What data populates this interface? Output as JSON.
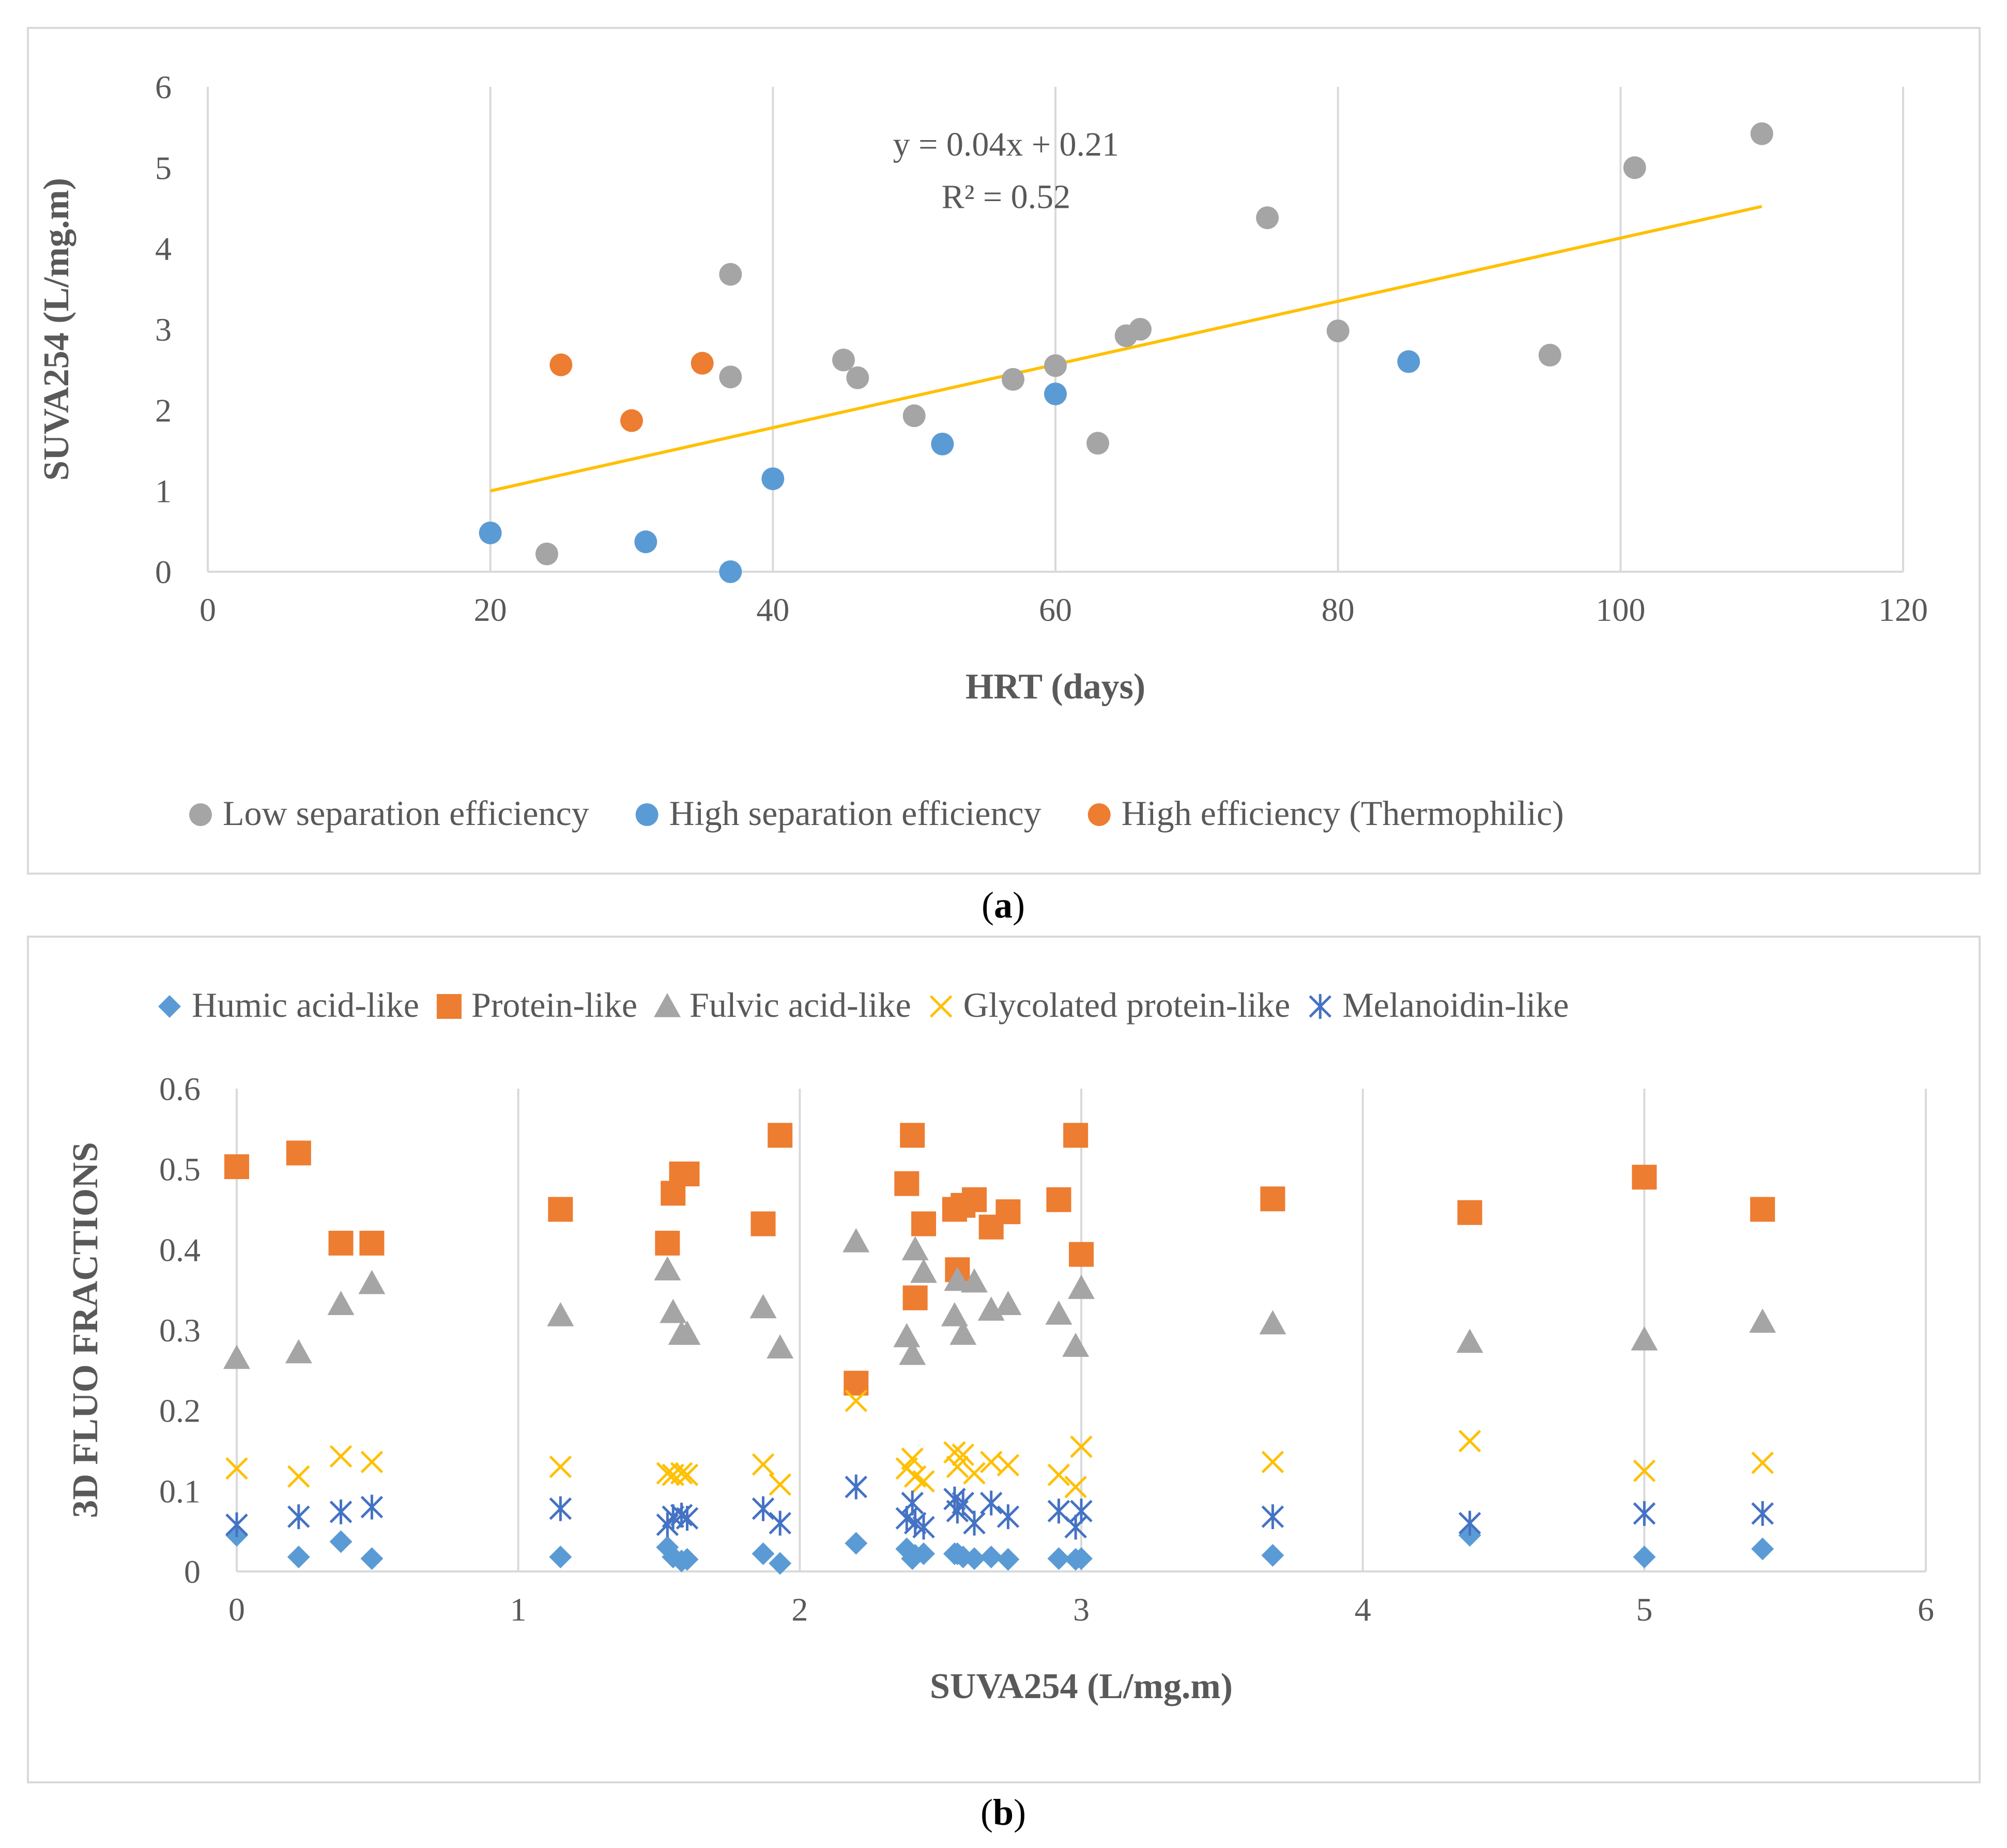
{
  "chart_data": [
    {
      "type": "scatter",
      "panel_caption": "a",
      "xlabel": "HRT (days)",
      "ylabel": "SUVA254 (L/mg.m)",
      "xlim": [
        0,
        120
      ],
      "ylim": [
        0,
        6
      ],
      "xticks": [
        0,
        20,
        40,
        60,
        80,
        100,
        120
      ],
      "yticks": [
        0,
        1,
        2,
        3,
        4,
        5,
        6
      ],
      "grid": "vertical",
      "legend_position": "bottom",
      "series": [
        {
          "name": "Low separation efficiency",
          "color": "#a5a5a5",
          "marker": "circle",
          "points": [
            [
              24,
              0.22
            ],
            [
              37,
              3.68
            ],
            [
              37,
              2.41
            ],
            [
              45,
              2.62
            ],
            [
              46,
              2.4
            ],
            [
              50,
              1.93
            ],
            [
              57,
              2.38
            ],
            [
              60,
              2.55
            ],
            [
              63,
              1.59
            ],
            [
              65,
              2.92
            ],
            [
              66,
              3.0
            ],
            [
              75,
              4.38
            ],
            [
              80,
              2.98
            ],
            [
              95,
              2.68
            ],
            [
              101,
              5.0
            ],
            [
              110,
              5.42
            ]
          ]
        },
        {
          "name": "High separation efficiency",
          "color": "#5b9bd5",
          "marker": "circle",
          "points": [
            [
              20,
              0.48
            ],
            [
              31,
              0.37
            ],
            [
              37,
              0.0
            ],
            [
              40,
              1.15
            ],
            [
              52,
              1.58
            ],
            [
              60,
              2.2
            ],
            [
              85,
              2.6
            ]
          ]
        },
        {
          "name": "High efficiency (Thermophilic)",
          "color": "#ed7d31",
          "marker": "circle",
          "points": [
            [
              25,
              2.56
            ],
            [
              30,
              1.87
            ],
            [
              35,
              2.58
            ]
          ]
        }
      ],
      "trendline": {
        "color": "#ffc000",
        "slope": 0.04,
        "intercept": 0.21,
        "x_range": [
          20,
          110
        ],
        "y_range": [
          1.0,
          4.52
        ],
        "equation": "y = 0.04x + 0.21",
        "r_squared": "R² = 0.52"
      }
    },
    {
      "type": "scatter",
      "panel_caption": "b",
      "xlabel": "SUVA254 (L/mg.m)",
      "ylabel": "3D FLUO FRACTIONS",
      "xlim": [
        0,
        6
      ],
      "ylim": [
        0,
        0.6
      ],
      "xticks": [
        "0",
        "1",
        "2",
        "3",
        "4",
        "5",
        "6"
      ],
      "yticks": [
        "0",
        "0.1",
        "0.2",
        "0.3",
        "0.4",
        "0.5",
        "0.6"
      ],
      "grid": "vertical",
      "legend_position": "top",
      "series": [
        {
          "name": "Humic acid-like",
          "color": "#5b9bd5",
          "marker": "diamond",
          "points": [
            [
              0.0,
              0.045
            ],
            [
              0.22,
              0.018
            ],
            [
              0.37,
              0.037
            ],
            [
              0.48,
              0.016
            ],
            [
              1.15,
              0.018
            ],
            [
              1.53,
              0.03
            ],
            [
              1.55,
              0.018
            ],
            [
              1.58,
              0.013
            ],
            [
              1.6,
              0.015
            ],
            [
              1.87,
              0.022
            ],
            [
              1.93,
              0.01
            ],
            [
              2.2,
              0.035
            ],
            [
              2.38,
              0.028
            ],
            [
              2.4,
              0.016
            ],
            [
              2.41,
              0.02
            ],
            [
              2.44,
              0.022
            ],
            [
              2.55,
              0.022
            ],
            [
              2.56,
              0.022
            ],
            [
              2.58,
              0.018
            ],
            [
              2.62,
              0.016
            ],
            [
              2.68,
              0.018
            ],
            [
              2.74,
              0.015
            ],
            [
              2.92,
              0.016
            ],
            [
              2.98,
              0.015
            ],
            [
              3.0,
              0.016
            ],
            [
              3.68,
              0.02
            ],
            [
              4.38,
              0.045
            ],
            [
              5.0,
              0.018
            ],
            [
              5.42,
              0.028
            ]
          ]
        },
        {
          "name": "Protein-like",
          "color": "#ed7d31",
          "marker": "square",
          "points": [
            [
              0.0,
              0.503
            ],
            [
              0.22,
              0.52
            ],
            [
              0.37,
              0.408
            ],
            [
              0.48,
              0.408
            ],
            [
              1.15,
              0.45
            ],
            [
              1.53,
              0.408
            ],
            [
              1.55,
              0.47
            ],
            [
              1.58,
              0.494
            ],
            [
              1.6,
              0.494
            ],
            [
              1.87,
              0.432
            ],
            [
              1.93,
              0.542
            ],
            [
              2.2,
              0.234
            ],
            [
              2.38,
              0.482
            ],
            [
              2.4,
              0.542
            ],
            [
              2.41,
              0.34
            ],
            [
              2.44,
              0.432
            ],
            [
              2.55,
              0.45
            ],
            [
              2.56,
              0.375
            ],
            [
              2.58,
              0.455
            ],
            [
              2.62,
              0.462
            ],
            [
              2.68,
              0.428
            ],
            [
              2.74,
              0.447
            ],
            [
              2.92,
              0.462
            ],
            [
              2.98,
              0.542
            ],
            [
              3.0,
              0.394
            ],
            [
              3.68,
              0.463
            ],
            [
              4.38,
              0.446
            ],
            [
              5.0,
              0.49
            ],
            [
              5.42,
              0.45
            ]
          ]
        },
        {
          "name": "Fulvic acid-like",
          "color": "#a5a5a5",
          "marker": "triangle",
          "points": [
            [
              0.0,
              0.265
            ],
            [
              0.22,
              0.272
            ],
            [
              0.37,
              0.332
            ],
            [
              0.48,
              0.358
            ],
            [
              1.15,
              0.318
            ],
            [
              1.53,
              0.375
            ],
            [
              1.55,
              0.322
            ],
            [
              1.58,
              0.295
            ],
            [
              1.6,
              0.295
            ],
            [
              1.87,
              0.328
            ],
            [
              1.93,
              0.278
            ],
            [
              2.2,
              0.41
            ],
            [
              2.38,
              0.292
            ],
            [
              2.4,
              0.27
            ],
            [
              2.41,
              0.4
            ],
            [
              2.44,
              0.372
            ],
            [
              2.55,
              0.318
            ],
            [
              2.56,
              0.362
            ],
            [
              2.58,
              0.295
            ],
            [
              2.62,
              0.36
            ],
            [
              2.68,
              0.325
            ],
            [
              2.74,
              0.332
            ],
            [
              2.92,
              0.32
            ],
            [
              2.98,
              0.28
            ],
            [
              3.0,
              0.352
            ],
            [
              3.68,
              0.308
            ],
            [
              4.38,
              0.285
            ],
            [
              5.0,
              0.288
            ],
            [
              5.42,
              0.31
            ]
          ]
        },
        {
          "name": "Glycolated protein-like",
          "color": "#ffc000",
          "marker": "x",
          "points": [
            [
              0.0,
              0.128
            ],
            [
              0.22,
              0.118
            ],
            [
              0.37,
              0.143
            ],
            [
              0.48,
              0.136
            ],
            [
              1.15,
              0.13
            ],
            [
              1.53,
              0.122
            ],
            [
              1.55,
              0.12
            ],
            [
              1.58,
              0.122
            ],
            [
              1.6,
              0.12
            ],
            [
              1.87,
              0.133
            ],
            [
              1.93,
              0.108
            ],
            [
              2.2,
              0.212
            ],
            [
              2.38,
              0.128
            ],
            [
              2.4,
              0.14
            ],
            [
              2.41,
              0.118
            ],
            [
              2.44,
              0.112
            ],
            [
              2.55,
              0.148
            ],
            [
              2.56,
              0.13
            ],
            [
              2.58,
              0.145
            ],
            [
              2.62,
              0.122
            ],
            [
              2.68,
              0.136
            ],
            [
              2.74,
              0.132
            ],
            [
              2.92,
              0.12
            ],
            [
              2.98,
              0.105
            ],
            [
              3.0,
              0.155
            ],
            [
              3.68,
              0.136
            ],
            [
              4.38,
              0.162
            ],
            [
              5.0,
              0.125
            ],
            [
              5.42,
              0.135
            ]
          ]
        },
        {
          "name": "Melanoidin-like",
          "color": "#4472c4",
          "marker": "asterisk",
          "points": [
            [
              0.0,
              0.058
            ],
            [
              0.22,
              0.068
            ],
            [
              0.37,
              0.074
            ],
            [
              0.48,
              0.08
            ],
            [
              1.15,
              0.078
            ],
            [
              1.53,
              0.058
            ],
            [
              1.55,
              0.068
            ],
            [
              1.58,
              0.07
            ],
            [
              1.6,
              0.066
            ],
            [
              1.87,
              0.078
            ],
            [
              1.93,
              0.06
            ],
            [
              2.2,
              0.105
            ],
            [
              2.38,
              0.066
            ],
            [
              2.4,
              0.085
            ],
            [
              2.41,
              0.06
            ],
            [
              2.44,
              0.055
            ],
            [
              2.55,
              0.09
            ],
            [
              2.56,
              0.075
            ],
            [
              2.58,
              0.085
            ],
            [
              2.62,
              0.06
            ],
            [
              2.68,
              0.085
            ],
            [
              2.74,
              0.068
            ],
            [
              2.92,
              0.075
            ],
            [
              2.98,
              0.055
            ],
            [
              3.0,
              0.075
            ],
            [
              3.68,
              0.068
            ],
            [
              4.38,
              0.06
            ],
            [
              5.0,
              0.072
            ],
            [
              5.42,
              0.072
            ]
          ]
        }
      ]
    }
  ]
}
